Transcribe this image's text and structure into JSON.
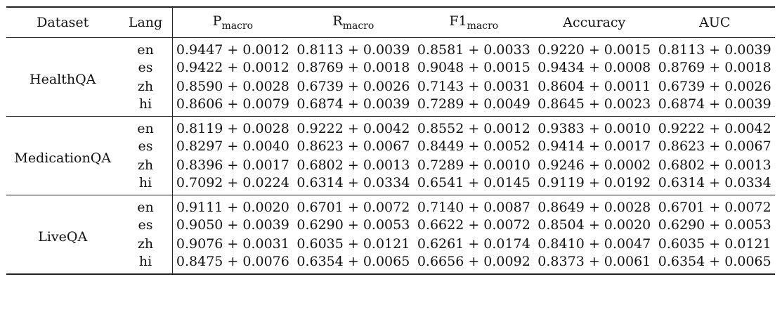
{
  "table": {
    "headers": {
      "dataset": "Dataset",
      "lang": "Lang",
      "p": "P",
      "p_sub": "macro",
      "r": "R",
      "r_sub": "macro",
      "f1": "F1",
      "f1_sub": "macro",
      "accuracy": "Accuracy",
      "auc": "AUC"
    },
    "groups": [
      {
        "name": "HealthQA",
        "rows": [
          {
            "lang": "en",
            "p": "0.9447 + 0.0012",
            "r": "0.8113 + 0.0039",
            "f1": "0.8581 + 0.0033",
            "acc": "0.9220 + 0.0015",
            "auc": "0.8113 + 0.0039"
          },
          {
            "lang": "es",
            "p": "0.9422 + 0.0012",
            "r": "0.8769 + 0.0018",
            "f1": "0.9048 + 0.0015",
            "acc": "0.9434 + 0.0008",
            "auc": "0.8769 + 0.0018"
          },
          {
            "lang": "zh",
            "p": "0.8590 + 0.0028",
            "r": "0.6739 + 0.0026",
            "f1": "0.7143 + 0.0031",
            "acc": "0.8604 + 0.0011",
            "auc": "0.6739 + 0.0026"
          },
          {
            "lang": "hi",
            "p": "0.8606 + 0.0079",
            "r": "0.6874 + 0.0039",
            "f1": "0.7289 + 0.0049",
            "acc": "0.8645 + 0.0023",
            "auc": "0.6874 + 0.0039"
          }
        ]
      },
      {
        "name": "MedicationQA",
        "rows": [
          {
            "lang": "en",
            "p": "0.8119 + 0.0028",
            "r": "0.9222 + 0.0042",
            "f1": "0.8552 + 0.0012",
            "acc": "0.9383 + 0.0010",
            "auc": "0.9222 + 0.0042"
          },
          {
            "lang": "es",
            "p": "0.8297 + 0.0040",
            "r": "0.8623 + 0.0067",
            "f1": "0.8449 + 0.0052",
            "acc": "0.9414 + 0.0017",
            "auc": "0.8623 + 0.0067"
          },
          {
            "lang": "zh",
            "p": "0.8396 + 0.0017",
            "r": "0.6802 + 0.0013",
            "f1": "0.7289 + 0.0010",
            "acc": "0.9246 + 0.0002",
            "auc": "0.6802 + 0.0013"
          },
          {
            "lang": "hi",
            "p": "0.7092 + 0.0224",
            "r": "0.6314 + 0.0334",
            "f1": "0.6541 + 0.0145",
            "acc": "0.9119 + 0.0192",
            "auc": "0.6314 + 0.0334"
          }
        ]
      },
      {
        "name": "LiveQA",
        "rows": [
          {
            "lang": "en",
            "p": "0.9111 + 0.0020",
            "r": "0.6701 + 0.0072",
            "f1": "0.7140 + 0.0087",
            "acc": "0.8649 + 0.0028",
            "auc": "0.6701 + 0.0072"
          },
          {
            "lang": "es",
            "p": "0.9050 + 0.0039",
            "r": "0.6290 + 0.0053",
            "f1": "0.6622 + 0.0072",
            "acc": "0.8504 + 0.0020",
            "auc": "0.6290 + 0.0053"
          },
          {
            "lang": "zh",
            "p": "0.9076 + 0.0031",
            "r": "0.6035 + 0.0121",
            "f1": "0.6261 + 0.0174",
            "acc": "0.8410 + 0.0047",
            "auc": "0.6035 + 0.0121"
          },
          {
            "lang": "hi",
            "p": "0.8475 + 0.0076",
            "r": "0.6354 + 0.0065",
            "f1": "0.6656 + 0.0092",
            "acc": "0.8373 + 0.0061",
            "auc": "0.6354 + 0.0065"
          }
        ]
      }
    ]
  }
}
